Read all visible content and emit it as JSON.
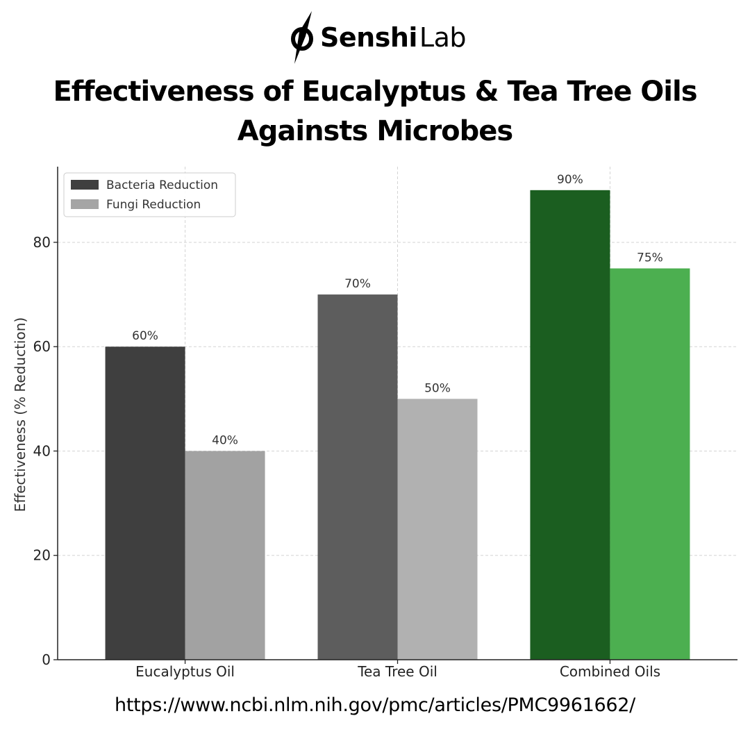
{
  "brand": {
    "name_bold": "Senshi",
    "name_light": "Lab",
    "icon": "senshi-logo-icon"
  },
  "header": {
    "title_line1": "Effectiveness of Eucalyptus & Tea Tree Oils",
    "title_line2": "Againsts Microbes"
  },
  "footer": {
    "source_url": "https://www.ncbi.nlm.nih.gov/pmc/articles/PMC9961662/"
  },
  "chart_data": {
    "type": "bar",
    "title": "",
    "xlabel": "",
    "ylabel": "Effectiveness (% Reduction)",
    "categories": [
      "Eucalyptus Oil",
      "Tea Tree Oil",
      "Combined Oils"
    ],
    "series": [
      {
        "name": "Bacteria Reduction",
        "values": [
          60,
          70,
          90
        ],
        "data_labels": [
          "60%",
          "70%",
          "90%"
        ],
        "colors": [
          "#3f3f3f",
          "#5d5d5d",
          "#1b5e20"
        ],
        "legend_color": "#3f3f3f"
      },
      {
        "name": "Fungi Reduction",
        "values": [
          40,
          50,
          75
        ],
        "data_labels": [
          "40%",
          "50%",
          "75%"
        ],
        "colors": [
          "#a2a2a2",
          "#b1b1b1",
          "#4caf50"
        ],
        "legend_color": "#a5a5a5"
      }
    ],
    "yticks": [
      0,
      20,
      40,
      60,
      80
    ],
    "ylim": [
      0,
      94.5
    ],
    "grid": true,
    "legend": "top-left"
  }
}
